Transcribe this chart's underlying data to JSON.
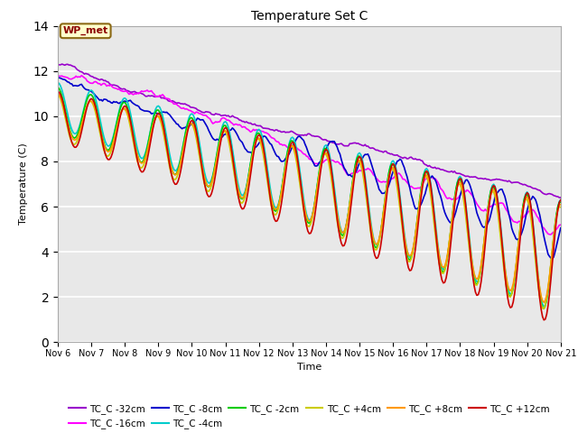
{
  "title": "Temperature Set C",
  "xlabel": "Time",
  "ylabel": "Temperature (C)",
  "ylim": [
    0,
    14
  ],
  "xlim": [
    0,
    360
  ],
  "x_tick_labels": [
    "Nov 6",
    "Nov 7",
    "Nov 8",
    "Nov 9",
    "Nov 10",
    "Nov 11",
    "Nov 12",
    "Nov 13",
    "Nov 14",
    "Nov 15",
    "Nov 16",
    "Nov 17",
    "Nov 18",
    "Nov 19",
    "Nov 20",
    "Nov 21"
  ],
  "x_tick_positions": [
    0,
    24,
    48,
    72,
    96,
    120,
    144,
    168,
    192,
    216,
    240,
    264,
    288,
    312,
    336,
    360
  ],
  "yticks": [
    0,
    2,
    4,
    6,
    8,
    10,
    12,
    14
  ],
  "series_colors": {
    "TC_C -32cm": "#9900cc",
    "TC_C -16cm": "#ff00ff",
    "TC_C -8cm": "#0000cc",
    "TC_C -4cm": "#00cccc",
    "TC_C -2cm": "#00cc00",
    "TC_C +4cm": "#cccc00",
    "TC_C +8cm": "#ff9900",
    "TC_C +12cm": "#cc0000"
  },
  "annotation_text": "WP_met",
  "bg_color": "#e8e8e8"
}
